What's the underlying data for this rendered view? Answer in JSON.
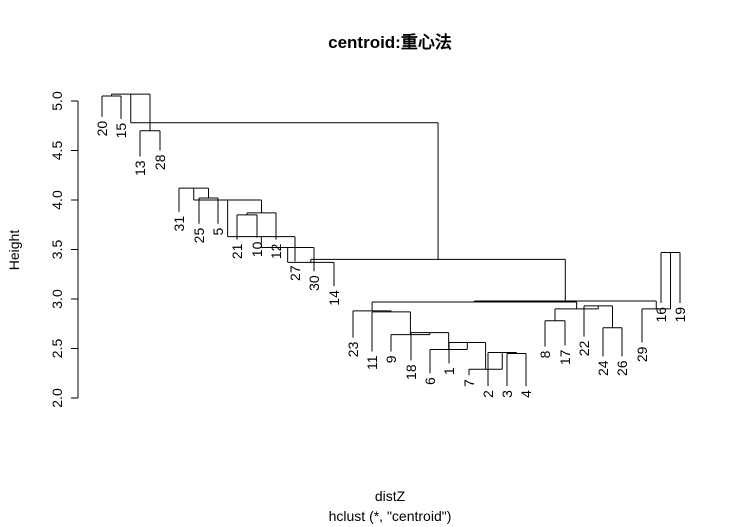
{
  "chart_data": {
    "type": "dendrogram",
    "title": "centroid:重心法",
    "xlabel": "distZ",
    "sublabel": "hclust (*, \"centroid\")",
    "ylabel": "Height",
    "ylim": [
      2.0,
      5.0
    ],
    "yticks": [
      "2.0",
      "2.5",
      "3.0",
      "3.5",
      "4.0",
      "4.5",
      "5.0"
    ],
    "leaves": [
      "20",
      "15",
      "13",
      "28",
      "31",
      "25",
      "5",
      "21",
      "10",
      "12",
      "27",
      "30",
      "14",
      "23",
      "11",
      "9",
      "18",
      "6",
      "1",
      "7",
      "2",
      "3",
      "4",
      "8",
      "17",
      "22",
      "24",
      "26",
      "29",
      "16",
      "19"
    ],
    "merges": [
      {
        "a": "20",
        "b": "15",
        "height": 5.05
      },
      {
        "a": "13",
        "b": "28",
        "height": 4.7
      },
      {
        "a": "20-15",
        "b": "13-28",
        "height": 5.07
      },
      {
        "a": "31",
        "b": "25-5",
        "height": 4.12
      },
      {
        "a": "25",
        "b": "5",
        "height": 4.02
      },
      {
        "a": "21",
        "b": "10",
        "height": 3.85
      },
      {
        "a": "21-10",
        "b": "12",
        "height": 3.87
      },
      {
        "a": "27",
        "b": "C31",
        "height": 3.63
      },
      {
        "a": "30",
        "b": "C27",
        "height": 3.52
      },
      {
        "a": "14",
        "b": "C30",
        "height": 3.37
      },
      {
        "a": "23",
        "b": "C11",
        "height": 2.88
      },
      {
        "a": "11",
        "b": "C9",
        "height": 2.87
      },
      {
        "a": "9",
        "b": "C18",
        "height": 2.64
      },
      {
        "a": "18",
        "b": "C6",
        "height": 2.66
      },
      {
        "a": "6",
        "b": "C1",
        "height": 2.49
      },
      {
        "a": "1",
        "b": "C7",
        "height": 2.56
      },
      {
        "a": "7",
        "b": "C2",
        "height": 2.29
      },
      {
        "a": "2",
        "b": "C3",
        "height": 2.46
      },
      {
        "a": "3",
        "b": "4",
        "height": 2.45
      },
      {
        "a": "8",
        "b": "17",
        "height": 2.78
      },
      {
        "a": "24",
        "b": "26",
        "height": 2.71
      },
      {
        "a": "22",
        "b": "C24",
        "height": 2.93
      },
      {
        "a": "16",
        "b": "19",
        "height": 3.47
      },
      {
        "a": "29",
        "b": "C16",
        "height": 2.9
      }
    ]
  }
}
